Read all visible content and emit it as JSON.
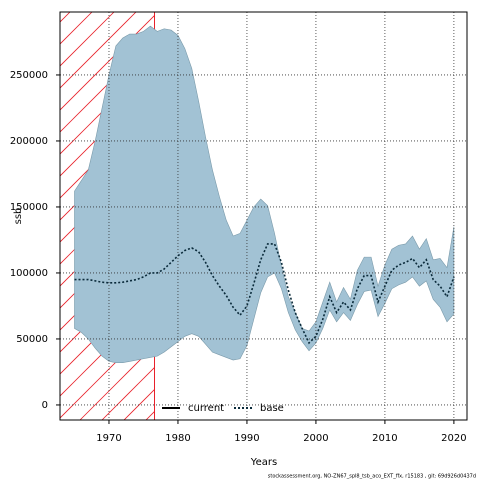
{
  "chart_data": {
    "type": "line",
    "x_label": "Years",
    "y_label": "ssb",
    "footer": "stockassessment.org, NO-ZN67_spl8_tsb_aco_EXT_ffx, r15183 , git: 69d926d0437d",
    "x": [
      1965,
      1966,
      1967,
      1968,
      1969,
      1970,
      1971,
      1972,
      1973,
      1974,
      1975,
      1976,
      1977,
      1978,
      1979,
      1980,
      1981,
      1982,
      1983,
      1984,
      1985,
      1986,
      1987,
      1988,
      1989,
      1990,
      1991,
      1992,
      1993,
      1994,
      1995,
      1996,
      1997,
      1998,
      1999,
      2000,
      2001,
      2002,
      2003,
      2004,
      2005,
      2006,
      2007,
      2008,
      2009,
      2010,
      2011,
      2012,
      2013,
      2014,
      2015,
      2016,
      2017,
      2018,
      2019,
      2020
    ],
    "band": {
      "color": "#a2c2d4",
      "upper": [
        162000,
        170000,
        178000,
        200000,
        225000,
        250000,
        272000,
        278000,
        281000,
        281000,
        283000,
        287000,
        283000,
        285000,
        284000,
        280000,
        270000,
        255000,
        230000,
        203000,
        178000,
        158000,
        140000,
        128000,
        130000,
        140000,
        150000,
        156000,
        151000,
        130000,
        105000,
        82000,
        70000,
        58000,
        56000,
        63000,
        78000,
        93000,
        78000,
        89000,
        80000,
        102000,
        112000,
        112000,
        90000,
        106000,
        118000,
        121000,
        122000,
        128000,
        118000,
        126000,
        110000,
        111000,
        104000,
        135000
      ],
      "lower": [
        58000,
        55000,
        50000,
        43000,
        37000,
        33000,
        32000,
        32000,
        33000,
        34000,
        35000,
        36000,
        37000,
        40000,
        44000,
        48000,
        52000,
        54000,
        52000,
        46000,
        40000,
        38000,
        36000,
        34000,
        35000,
        45000,
        65000,
        85000,
        97000,
        100000,
        88000,
        70000,
        57000,
        48000,
        41000,
        47000,
        58000,
        72000,
        63000,
        70000,
        64000,
        76000,
        86000,
        87000,
        67000,
        77000,
        88000,
        91000,
        93000,
        97000,
        90000,
        94000,
        80000,
        74000,
        63000,
        69000
      ]
    },
    "series": [
      {
        "name": "base",
        "color": "#0a2a3a",
        "values": [
          95000,
          95000,
          95000,
          94000,
          93000,
          92500,
          92500,
          93000,
          94000,
          95000,
          97000,
          100000,
          100000,
          103000,
          108000,
          113000,
          117000,
          119000,
          116000,
          108000,
          98000,
          90000,
          83000,
          74000,
          68000,
          75000,
          92000,
          110000,
          122000,
          122000,
          108000,
          87000,
          70000,
          58000,
          47000,
          52000,
          65000,
          82000,
          70000,
          78000,
          72000,
          88000,
          98000,
          98000,
          78000,
          90000,
          102000,
          106000,
          108000,
          111000,
          104000,
          110000,
          95000,
          90000,
          82000,
          97000
        ]
      }
    ],
    "legend_items": [
      {
        "label": "current",
        "color": "#000000"
      }
    ],
    "hatch_end": 1976.6,
    "hatch_color": "#e8202a",
    "xlim": [
      1962.9,
      2021.9
    ],
    "ylim": [
      -11400,
      297700
    ],
    "xticks": [
      1970,
      1980,
      1990,
      2000,
      2010,
      2020
    ],
    "yticks": [
      0,
      50000,
      100000,
      150000,
      200000,
      250000
    ],
    "grid": true
  }
}
